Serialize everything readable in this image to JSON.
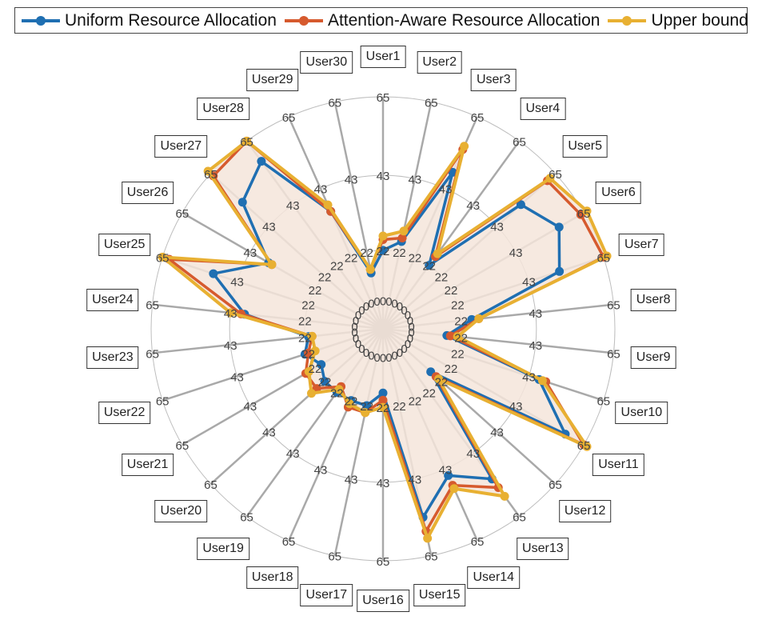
{
  "chart_data": {
    "type": "radar",
    "title": "",
    "categories": [
      "User1",
      "User2",
      "User3",
      "User4",
      "User5",
      "User6",
      "User7",
      "User8",
      "User9",
      "User10",
      "User11",
      "User12",
      "User13",
      "User14",
      "User15",
      "User16",
      "User17",
      "User18",
      "User19",
      "User20",
      "User21",
      "User22",
      "User23",
      "User24",
      "User25",
      "User26",
      "User27",
      "User28",
      "User29",
      "User30"
    ],
    "rlim": [
      0,
      65
    ],
    "ring_ticks": [
      0,
      22,
      43,
      65
    ],
    "ring_tick_labels": [
      "0",
      "22",
      "43",
      "65"
    ],
    "grid": true,
    "legend_position": "top",
    "series": [
      {
        "name": "Uniform Resource Allocation",
        "color": "#1f6fb2",
        "values": [
          22,
          25,
          48,
          22,
          52,
          57,
          52,
          25,
          18,
          46,
          59,
          18,
          52,
          45,
          54,
          18,
          22,
          22,
          22,
          22,
          20,
          23,
          21,
          39,
          50,
          37,
          53,
          58,
          36,
          16
        ]
      },
      {
        "name": "Attention-Aware Resource Allocation",
        "color": "#d65a2e",
        "values": [
          25,
          26,
          55,
          25,
          62,
          64,
          65,
          27,
          19,
          48,
          65,
          20,
          55,
          48,
          58,
          20,
          24,
          24,
          20,
          25,
          25,
          22,
          20,
          40,
          63,
          36,
          64,
          65,
          36,
          17
        ]
      },
      {
        "name": "Upper bound",
        "color": "#e8b032",
        "values": [
          26,
          28,
          56,
          26,
          63,
          66,
          66,
          27,
          21,
          47,
          66,
          21,
          58,
          49,
          60,
          22,
          24,
          23,
          21,
          27,
          24,
          20,
          20,
          43,
          65,
          36,
          66,
          65,
          38,
          17
        ]
      }
    ],
    "fill_color": "#f4e5da"
  }
}
